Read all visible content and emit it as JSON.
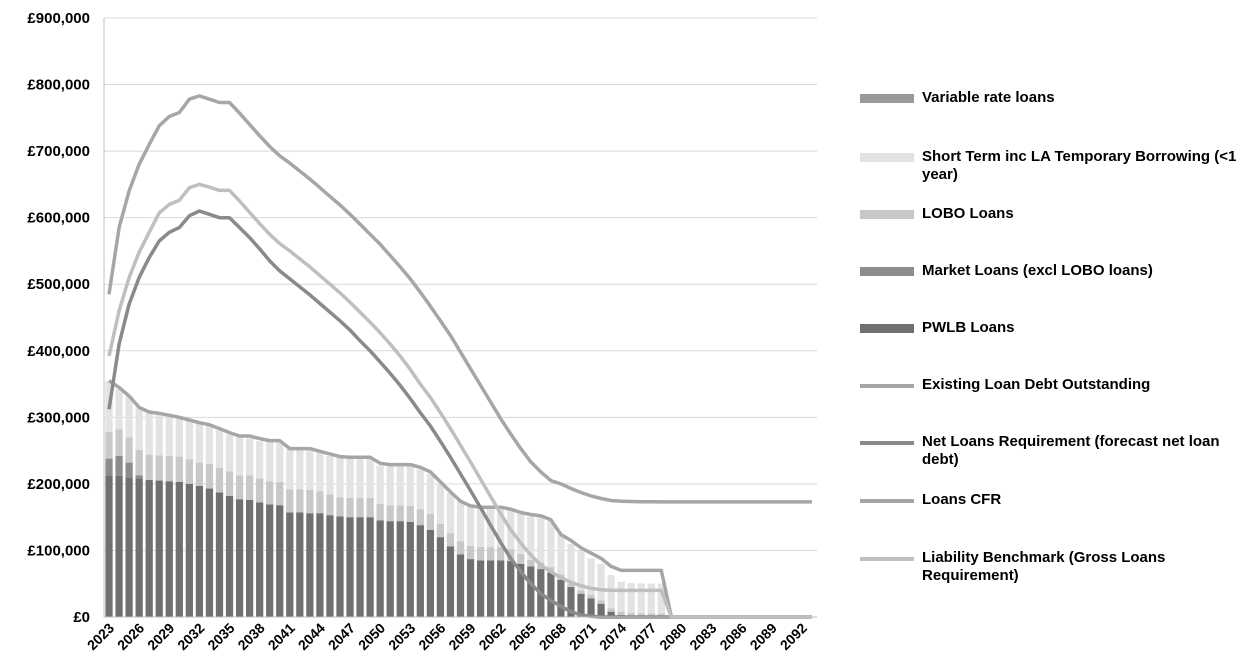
{
  "chart_data": {
    "type": "bar",
    "stacked": true,
    "title": "",
    "xlabel": "",
    "ylabel": "",
    "ylim": [
      0,
      900000
    ],
    "y_ticks": [
      0,
      100000,
      200000,
      300000,
      400000,
      500000,
      600000,
      700000,
      800000,
      900000
    ],
    "y_tick_labels": [
      "£0",
      "£100,000",
      "£200,000",
      "£300,000",
      "£400,000",
      "£500,000",
      "£600,000",
      "£700,000",
      "£800,000",
      "£900,000"
    ],
    "x": [
      2023,
      2024,
      2025,
      2026,
      2027,
      2028,
      2029,
      2030,
      2031,
      2032,
      2033,
      2034,
      2035,
      2036,
      2037,
      2038,
      2039,
      2040,
      2041,
      2042,
      2043,
      2044,
      2045,
      2046,
      2047,
      2048,
      2049,
      2050,
      2051,
      2052,
      2053,
      2054,
      2055,
      2056,
      2057,
      2058,
      2059,
      2060,
      2061,
      2062,
      2063,
      2064,
      2065,
      2066,
      2067,
      2068,
      2069,
      2070,
      2071,
      2072,
      2073,
      2074,
      2075,
      2076,
      2077,
      2078,
      2079,
      2080,
      2081,
      2082,
      2083,
      2084,
      2085,
      2086,
      2087,
      2088,
      2089,
      2090,
      2091,
      2092,
      2093
    ],
    "x_tick_labels": [
      "2023",
      "2026",
      "2029",
      "2032",
      "2035",
      "2038",
      "2041",
      "2044",
      "2047",
      "2050",
      "2053",
      "2056",
      "2059",
      "2062",
      "2065",
      "2068",
      "2071",
      "2074",
      "2077",
      "2080",
      "2083",
      "2086",
      "2089",
      "2092"
    ],
    "grid": "horizontal",
    "legend_position": "right",
    "bar_series": [
      {
        "name": "PWLB Loans",
        "color": "#707070",
        "values": [
          213000,
          212000,
          210000,
          208000,
          206000,
          205000,
          204000,
          203000,
          200000,
          197000,
          193000,
          187000,
          182000,
          177000,
          176000,
          172000,
          169000,
          168000,
          157000,
          157000,
          156000,
          156000,
          153000,
          151000,
          150000,
          150000,
          150000,
          145000,
          144000,
          144000,
          143000,
          138000,
          131000,
          120000,
          106000,
          94000,
          87000,
          85000,
          85000,
          85000,
          84000,
          80000,
          76000,
          72000,
          67000,
          56000,
          45000,
          35000,
          28000,
          20000,
          8000,
          3000,
          1000,
          500,
          300,
          200,
          0,
          0,
          0,
          0,
          0,
          0,
          0,
          0,
          0,
          0,
          0,
          0,
          0,
          0,
          0
        ]
      },
      {
        "name": "Market Loans (excl LOBO loans)",
        "color": "#8c8c8c",
        "values": [
          25000,
          30000,
          22000,
          5000,
          0,
          0,
          0,
          0,
          0,
          0,
          0,
          0,
          0,
          0,
          0,
          0,
          0,
          0,
          0,
          0,
          0,
          0,
          0,
          0,
          0,
          0,
          0,
          0,
          0,
          0,
          0,
          0,
          0,
          0,
          0,
          0,
          0,
          0,
          0,
          0,
          0,
          0,
          0,
          0,
          0,
          0,
          0,
          0,
          0,
          0,
          0,
          0,
          0,
          0,
          0,
          0,
          0,
          0,
          0,
          0,
          0,
          0,
          0,
          0,
          0,
          0,
          0,
          0,
          0,
          0,
          0
        ]
      },
      {
        "name": "LOBO Loans",
        "color": "#c8c8c8",
        "values": [
          40000,
          40000,
          38000,
          38000,
          38000,
          38000,
          38000,
          38000,
          37000,
          35000,
          37000,
          37000,
          37000,
          36000,
          37000,
          36000,
          35000,
          35000,
          35000,
          35000,
          35000,
          33000,
          31000,
          29000,
          29000,
          29000,
          29000,
          25000,
          24000,
          24000,
          24000,
          24000,
          24000,
          20000,
          20000,
          20000,
          20000,
          20000,
          20000,
          20000,
          18000,
          15000,
          10000,
          10000,
          8000,
          8000,
          5000,
          5000,
          5000,
          5000,
          5000,
          5000,
          5000,
          5000,
          5000,
          5000,
          0,
          0,
          0,
          0,
          0,
          0,
          0,
          0,
          0,
          0,
          0,
          0,
          0,
          0,
          0
        ]
      },
      {
        "name": "Short Term inc LA Temporary Borrowing (<1 year)",
        "color": "#e3e3e3",
        "values": [
          77000,
          61000,
          62000,
          64000,
          62000,
          63000,
          62000,
          60000,
          60000,
          60000,
          60000,
          57000,
          55000,
          58000,
          55000,
          56000,
          59000,
          59000,
          60000,
          59000,
          59000,
          59000,
          58000,
          59000,
          60000,
          60000,
          60000,
          58000,
          60000,
          60000,
          60000,
          60000,
          60000,
          60000,
          60000,
          60000,
          60000,
          60000,
          60000,
          60000,
          60000,
          60000,
          65000,
          70000,
          70000,
          60000,
          60000,
          60000,
          55000,
          55000,
          50000,
          45000,
          45000,
          45000,
          45000,
          45000,
          0,
          0,
          0,
          0,
          0,
          0,
          0,
          0,
          0,
          0,
          0,
          0,
          0,
          0,
          0
        ]
      },
      {
        "name": "Variable rate loans",
        "color": "#9a9a9a",
        "values": [
          0,
          0,
          0,
          0,
          0,
          0,
          0,
          0,
          0,
          0,
          0,
          0,
          0,
          0,
          0,
          0,
          0,
          0,
          0,
          0,
          0,
          0,
          0,
          0,
          0,
          0,
          0,
          0,
          0,
          0,
          0,
          0,
          0,
          0,
          0,
          0,
          0,
          0,
          0,
          0,
          0,
          0,
          0,
          0,
          0,
          0,
          0,
          0,
          0,
          0,
          0,
          0,
          0,
          0,
          0,
          0,
          0,
          0,
          0,
          0,
          0,
          0,
          0,
          0,
          0,
          0,
          0,
          0,
          0,
          0,
          0
        ]
      }
    ],
    "line_series": [
      {
        "name": "Existing Loan Debt Outstanding",
        "color": "#a6a6a6",
        "values": [
          355000,
          345000,
          332000,
          315000,
          308000,
          306000,
          303000,
          300000,
          296000,
          292000,
          289000,
          283000,
          277000,
          272000,
          272000,
          268000,
          265000,
          265000,
          253000,
          253000,
          253000,
          249000,
          245000,
          241000,
          240000,
          240000,
          240000,
          231000,
          229000,
          229000,
          229000,
          225000,
          218000,
          203000,
          188000,
          174000,
          167000,
          165000,
          165000,
          165000,
          162000,
          157000,
          154000,
          152000,
          146000,
          124000,
          115000,
          104000,
          96000,
          88000,
          76000,
          70000,
          70000,
          70000,
          70000,
          70000,
          0,
          0,
          0,
          0,
          0,
          0,
          0,
          0,
          0,
          0,
          0,
          0,
          0,
          0,
          0
        ]
      },
      {
        "name": "Net Loans Requirement (forecast net loan debt)",
        "color": "#8a8a8a",
        "values": [
          312000,
          410000,
          470000,
          510000,
          540000,
          565000,
          578000,
          585000,
          603000,
          610000,
          605000,
          600000,
          600000,
          585000,
          570000,
          553000,
          535000,
          520000,
          508000,
          496000,
          484000,
          471000,
          458000,
          445000,
          431000,
          415000,
          400000,
          383000,
          366000,
          348000,
          328000,
          307000,
          287000,
          264000,
          240000,
          215000,
          190000,
          164000,
          138000,
          112000,
          88000,
          68000,
          50000,
          35000,
          25000,
          16000,
          8000,
          3000,
          1000,
          0,
          0,
          0,
          0,
          0,
          0,
          0,
          0,
          0,
          0,
          0,
          0,
          0,
          0,
          0,
          0,
          0,
          0,
          0,
          0,
          0,
          0
        ]
      },
      {
        "name": "Loans CFR",
        "color": "#a6a6a6",
        "values": [
          485000,
          585000,
          640000,
          680000,
          710000,
          738000,
          752000,
          758000,
          778000,
          783000,
          778000,
          773000,
          773000,
          757000,
          740000,
          723000,
          707000,
          693000,
          682000,
          670000,
          658000,
          645000,
          632000,
          619000,
          605000,
          590000,
          575000,
          560000,
          543000,
          526000,
          508000,
          488000,
          467000,
          445000,
          423000,
          398000,
          373000,
          348000,
          323000,
          298000,
          275000,
          253000,
          233000,
          218000,
          205000,
          200000,
          193000,
          187000,
          182000,
          178000,
          175000,
          174000,
          173500,
          173300,
          173100,
          173000,
          173000,
          173000,
          173000,
          173000,
          173000,
          173000,
          173000,
          173000,
          173000,
          173000,
          173000,
          173000,
          173000,
          173000,
          173000
        ]
      },
      {
        "name": "Liability Benchmark (Gross Loans Requirement)",
        "color": "#bfbfbf",
        "values": [
          392000,
          460000,
          510000,
          548000,
          578000,
          607000,
          620000,
          626000,
          645000,
          650000,
          646000,
          641000,
          641000,
          625000,
          608000,
          591000,
          575000,
          561000,
          550000,
          538000,
          526000,
          513000,
          500000,
          487000,
          473000,
          458000,
          443000,
          427000,
          410000,
          392000,
          372000,
          350000,
          330000,
          307000,
          283000,
          258000,
          233000,
          207000,
          181000,
          155000,
          131000,
          111000,
          93000,
          78000,
          68000,
          59000,
          52000,
          47000,
          43000,
          41000,
          40000,
          40000,
          40000,
          40000,
          40000,
          40000,
          0,
          0,
          0,
          0,
          0,
          0,
          0,
          0,
          0,
          0,
          0,
          0,
          0,
          0,
          0
        ]
      }
    ],
    "legend_order": [
      "Variable rate loans",
      "Short Term inc LA Temporary Borrowing (<1 year)",
      "LOBO Loans",
      "Market Loans (excl LOBO loans)",
      "PWLB Loans",
      "Existing Loan Debt Outstanding",
      "Net Loans Requirement (forecast net loan debt)",
      "Loans CFR",
      "Liability Benchmark (Gross Loans Requirement)"
    ]
  },
  "legend": {
    "items": [
      {
        "label": "Variable rate loans",
        "kind": "bar",
        "color": "#9a9a9a"
      },
      {
        "label": "Short Term inc LA Temporary Borrowing (<1 year)",
        "kind": "bar",
        "color": "#e3e3e3"
      },
      {
        "label": "LOBO Loans",
        "kind": "bar",
        "color": "#c8c8c8"
      },
      {
        "label": "Market Loans (excl LOBO loans)",
        "kind": "bar",
        "color": "#8c8c8c"
      },
      {
        "label": "PWLB Loans",
        "kind": "bar",
        "color": "#707070"
      },
      {
        "label": "Existing Loan Debt Outstanding",
        "kind": "line",
        "color": "#a6a6a6"
      },
      {
        "label": "Net Loans Requirement (forecast net loan debt)",
        "kind": "line",
        "color": "#8a8a8a"
      },
      {
        "label": "Loans CFR",
        "kind": "line",
        "color": "#a6a6a6"
      },
      {
        "label": "Liability Benchmark (Gross Loans Requirement)",
        "kind": "line",
        "color": "#bfbfbf"
      }
    ]
  }
}
